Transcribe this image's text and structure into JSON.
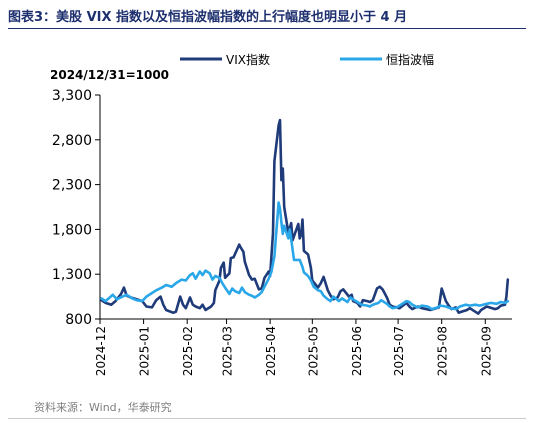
{
  "header": {
    "title": "图表3：美股 VIX 指数以及恒指波幅指数的上行幅度也明显小于 4 月"
  },
  "footer": {
    "source": "资料来源：Wind，华泰研究"
  },
  "chart_data": {
    "type": "line",
    "title": "",
    "unit_note": "2024/12/31=1000",
    "xlabel": "",
    "ylabel": "",
    "ylim": [
      800,
      3300
    ],
    "yticks": [
      800,
      1300,
      1800,
      2300,
      2800,
      3300
    ],
    "ytick_labels": [
      "800",
      "1,300",
      "1,800",
      "2,300",
      "2,800",
      "3,300"
    ],
    "xlim": [
      "2024-12-01",
      "2025-09-20"
    ],
    "xticks": [
      "2024-12-01",
      "2025-01-01",
      "2025-02-01",
      "2025-03-01",
      "2025-04-01",
      "2025-05-01",
      "2025-06-01",
      "2025-07-01",
      "2025-08-01",
      "2025-09-01"
    ],
    "xtick_labels": [
      "2024-12",
      "2025-01",
      "2025-02",
      "2025-03",
      "2025-04",
      "2025-05",
      "2025-06",
      "2025-07",
      "2025-08",
      "2025-09"
    ],
    "grid": false,
    "legend": "top",
    "colors": {
      "vix": "#1f3b7a",
      "vhsi": "#2aa7e8"
    },
    "series": [
      {
        "name": "VIX指数",
        "key": "vix",
        "points": [
          [
            "2024-12-02",
            1010
          ],
          [
            "2024-12-05",
            980
          ],
          [
            "2024-12-09",
            960
          ],
          [
            "2024-12-12",
            1000
          ],
          [
            "2024-12-16",
            1080
          ],
          [
            "2024-12-18",
            1150
          ],
          [
            "2024-12-20",
            1060
          ],
          [
            "2024-12-23",
            1040
          ],
          [
            "2024-12-27",
            1020
          ],
          [
            "2024-12-31",
            1000
          ],
          [
            "2025-01-03",
            940
          ],
          [
            "2025-01-07",
            930
          ],
          [
            "2025-01-10",
            1010
          ],
          [
            "2025-01-13",
            1050
          ],
          [
            "2025-01-15",
            960
          ],
          [
            "2025-01-17",
            900
          ],
          [
            "2025-01-22",
            870
          ],
          [
            "2025-01-24",
            880
          ],
          [
            "2025-01-27",
            1050
          ],
          [
            "2025-01-29",
            960
          ],
          [
            "2025-01-31",
            920
          ],
          [
            "2025-02-03",
            1040
          ],
          [
            "2025-02-05",
            960
          ],
          [
            "2025-02-07",
            940
          ],
          [
            "2025-02-10",
            920
          ],
          [
            "2025-02-12",
            960
          ],
          [
            "2025-02-14",
            900
          ],
          [
            "2025-02-18",
            940
          ],
          [
            "2025-02-20",
            980
          ],
          [
            "2025-02-21",
            1120
          ],
          [
            "2025-02-24",
            1230
          ],
          [
            "2025-02-25",
            1370
          ],
          [
            "2025-02-27",
            1430
          ],
          [
            "2025-02-28",
            1260
          ],
          [
            "2025-03-03",
            1310
          ],
          [
            "2025-03-04",
            1480
          ],
          [
            "2025-03-06",
            1490
          ],
          [
            "2025-03-10",
            1630
          ],
          [
            "2025-03-11",
            1600
          ],
          [
            "2025-03-13",
            1550
          ],
          [
            "2025-03-14",
            1440
          ],
          [
            "2025-03-17",
            1290
          ],
          [
            "2025-03-19",
            1240
          ],
          [
            "2025-03-21",
            1250
          ],
          [
            "2025-03-24",
            1130
          ],
          [
            "2025-03-26",
            1140
          ],
          [
            "2025-03-28",
            1260
          ],
          [
            "2025-03-31",
            1330
          ],
          [
            "2025-04-01",
            1280
          ],
          [
            "2025-04-03",
            1760
          ],
          [
            "2025-04-04",
            2560
          ],
          [
            "2025-04-07",
            2960
          ],
          [
            "2025-04-08",
            3020
          ],
          [
            "2025-04-09",
            2350
          ],
          [
            "2025-04-10",
            2480
          ],
          [
            "2025-04-11",
            2050
          ],
          [
            "2025-04-14",
            1760
          ],
          [
            "2025-04-16",
            1870
          ],
          [
            "2025-04-17",
            1680
          ],
          [
            "2025-04-21",
            1860
          ],
          [
            "2025-04-22",
            1700
          ],
          [
            "2025-04-23",
            1740
          ],
          [
            "2025-04-24",
            1910
          ],
          [
            "2025-04-25",
            1560
          ],
          [
            "2025-04-28",
            1520
          ],
          [
            "2025-04-30",
            1370
          ],
          [
            "2025-05-01",
            1230
          ],
          [
            "2025-05-05",
            1150
          ],
          [
            "2025-05-07",
            1200
          ],
          [
            "2025-05-09",
            1270
          ],
          [
            "2025-05-12",
            1120
          ],
          [
            "2025-05-14",
            1060
          ],
          [
            "2025-05-16",
            1020
          ],
          [
            "2025-05-19",
            1040
          ],
          [
            "2025-05-21",
            1110
          ],
          [
            "2025-05-23",
            1130
          ],
          [
            "2025-05-27",
            1050
          ],
          [
            "2025-05-29",
            1070
          ],
          [
            "2025-05-30",
            1000
          ],
          [
            "2025-06-02",
            980
          ],
          [
            "2025-06-04",
            940
          ],
          [
            "2025-06-06",
            1010
          ],
          [
            "2025-06-09",
            1000
          ],
          [
            "2025-06-11",
            990
          ],
          [
            "2025-06-13",
            1010
          ],
          [
            "2025-06-16",
            1140
          ],
          [
            "2025-06-18",
            1160
          ],
          [
            "2025-06-20",
            1130
          ],
          [
            "2025-06-23",
            1040
          ],
          [
            "2025-06-25",
            960
          ],
          [
            "2025-06-27",
            940
          ],
          [
            "2025-06-30",
            930
          ],
          [
            "2025-07-02",
            920
          ],
          [
            "2025-07-07",
            980
          ],
          [
            "2025-07-09",
            940
          ],
          [
            "2025-07-11",
            910
          ],
          [
            "2025-07-15",
            940
          ],
          [
            "2025-07-18",
            920
          ],
          [
            "2025-07-21",
            910
          ],
          [
            "2025-07-24",
            900
          ],
          [
            "2025-07-28",
            920
          ],
          [
            "2025-07-30",
            930
          ],
          [
            "2025-08-01",
            1140
          ],
          [
            "2025-08-04",
            1000
          ],
          [
            "2025-08-06",
            950
          ],
          [
            "2025-08-08",
            910
          ],
          [
            "2025-08-11",
            930
          ],
          [
            "2025-08-13",
            870
          ],
          [
            "2025-08-15",
            880
          ],
          [
            "2025-08-19",
            900
          ],
          [
            "2025-08-21",
            920
          ],
          [
            "2025-08-25",
            880
          ],
          [
            "2025-08-27",
            860
          ],
          [
            "2025-08-29",
            900
          ],
          [
            "2025-09-02",
            940
          ],
          [
            "2025-09-04",
            930
          ],
          [
            "2025-09-08",
            910
          ],
          [
            "2025-09-10",
            920
          ],
          [
            "2025-09-12",
            950
          ],
          [
            "2025-09-15",
            960
          ],
          [
            "2025-09-16",
            1050
          ],
          [
            "2025-09-17",
            1240
          ]
        ]
      },
      {
        "name": "恒指波幅",
        "key": "vhsi",
        "points": [
          [
            "2024-12-02",
            1030
          ],
          [
            "2024-12-05",
            1000
          ],
          [
            "2024-12-10",
            1070
          ],
          [
            "2024-12-13",
            1020
          ],
          [
            "2024-12-17",
            1050
          ],
          [
            "2024-12-20",
            1070
          ],
          [
            "2024-12-24",
            1030
          ],
          [
            "2024-12-27",
            1010
          ],
          [
            "2024-12-31",
            1000
          ],
          [
            "2025-01-03",
            1050
          ],
          [
            "2025-01-07",
            1090
          ],
          [
            "2025-01-10",
            1120
          ],
          [
            "2025-01-14",
            1150
          ],
          [
            "2025-01-17",
            1180
          ],
          [
            "2025-01-21",
            1160
          ],
          [
            "2025-01-24",
            1200
          ],
          [
            "2025-01-28",
            1240
          ],
          [
            "2025-01-31",
            1230
          ],
          [
            "2025-02-03",
            1290
          ],
          [
            "2025-02-05",
            1310
          ],
          [
            "2025-02-07",
            1250
          ],
          [
            "2025-02-10",
            1330
          ],
          [
            "2025-02-12",
            1290
          ],
          [
            "2025-02-14",
            1340
          ],
          [
            "2025-02-17",
            1310
          ],
          [
            "2025-02-19",
            1240
          ],
          [
            "2025-02-21",
            1280
          ],
          [
            "2025-02-24",
            1260
          ],
          [
            "2025-02-26",
            1200
          ],
          [
            "2025-02-28",
            1150
          ],
          [
            "2025-03-03",
            1080
          ],
          [
            "2025-03-05",
            1140
          ],
          [
            "2025-03-07",
            1110
          ],
          [
            "2025-03-10",
            1090
          ],
          [
            "2025-03-12",
            1150
          ],
          [
            "2025-03-14",
            1100
          ],
          [
            "2025-03-17",
            1070
          ],
          [
            "2025-03-19",
            1060
          ],
          [
            "2025-03-21",
            1040
          ],
          [
            "2025-03-24",
            1070
          ],
          [
            "2025-03-26",
            1100
          ],
          [
            "2025-03-28",
            1160
          ],
          [
            "2025-03-31",
            1250
          ],
          [
            "2025-04-02",
            1330
          ],
          [
            "2025-04-03",
            1420
          ],
          [
            "2025-04-04",
            1500
          ],
          [
            "2025-04-07",
            2100
          ],
          [
            "2025-04-08",
            2030
          ],
          [
            "2025-04-09",
            1880
          ],
          [
            "2025-04-10",
            1750
          ],
          [
            "2025-04-11",
            1840
          ],
          [
            "2025-04-14",
            1700
          ],
          [
            "2025-04-15",
            1800
          ],
          [
            "2025-04-16",
            1690
          ],
          [
            "2025-04-18",
            1460
          ],
          [
            "2025-04-22",
            1460
          ],
          [
            "2025-04-24",
            1380
          ],
          [
            "2025-04-25",
            1320
          ],
          [
            "2025-04-28",
            1280
          ],
          [
            "2025-04-30",
            1230
          ],
          [
            "2025-05-02",
            1160
          ],
          [
            "2025-05-05",
            1120
          ],
          [
            "2025-05-07",
            1110
          ],
          [
            "2025-05-09",
            1060
          ],
          [
            "2025-05-12",
            1020
          ],
          [
            "2025-05-14",
            1000
          ],
          [
            "2025-05-16",
            1050
          ],
          [
            "2025-05-20",
            1000
          ],
          [
            "2025-05-22",
            1030
          ],
          [
            "2025-05-26",
            990
          ],
          [
            "2025-05-28",
            1040
          ],
          [
            "2025-05-30",
            1020
          ],
          [
            "2025-06-03",
            980
          ],
          [
            "2025-06-05",
            960
          ],
          [
            "2025-06-09",
            950
          ],
          [
            "2025-06-11",
            940
          ],
          [
            "2025-06-13",
            960
          ],
          [
            "2025-06-17",
            980
          ],
          [
            "2025-06-19",
            1010
          ],
          [
            "2025-06-23",
            970
          ],
          [
            "2025-06-25",
            940
          ],
          [
            "2025-06-27",
            920
          ],
          [
            "2025-06-30",
            930
          ],
          [
            "2025-07-03",
            960
          ],
          [
            "2025-07-07",
            1000
          ],
          [
            "2025-07-09",
            990
          ],
          [
            "2025-07-11",
            960
          ],
          [
            "2025-07-15",
            930
          ],
          [
            "2025-07-18",
            950
          ],
          [
            "2025-07-22",
            940
          ],
          [
            "2025-07-25",
            910
          ],
          [
            "2025-07-29",
            930
          ],
          [
            "2025-07-31",
            950
          ],
          [
            "2025-08-04",
            940
          ],
          [
            "2025-08-07",
            920
          ],
          [
            "2025-08-11",
            910
          ],
          [
            "2025-08-14",
            940
          ],
          [
            "2025-08-18",
            960
          ],
          [
            "2025-08-21",
            950
          ],
          [
            "2025-08-25",
            960
          ],
          [
            "2025-08-28",
            950
          ],
          [
            "2025-09-02",
            970
          ],
          [
            "2025-09-05",
            980
          ],
          [
            "2025-09-09",
            970
          ],
          [
            "2025-09-12",
            990
          ],
          [
            "2025-09-15",
            980
          ],
          [
            "2025-09-17",
            1000
          ]
        ]
      }
    ]
  }
}
